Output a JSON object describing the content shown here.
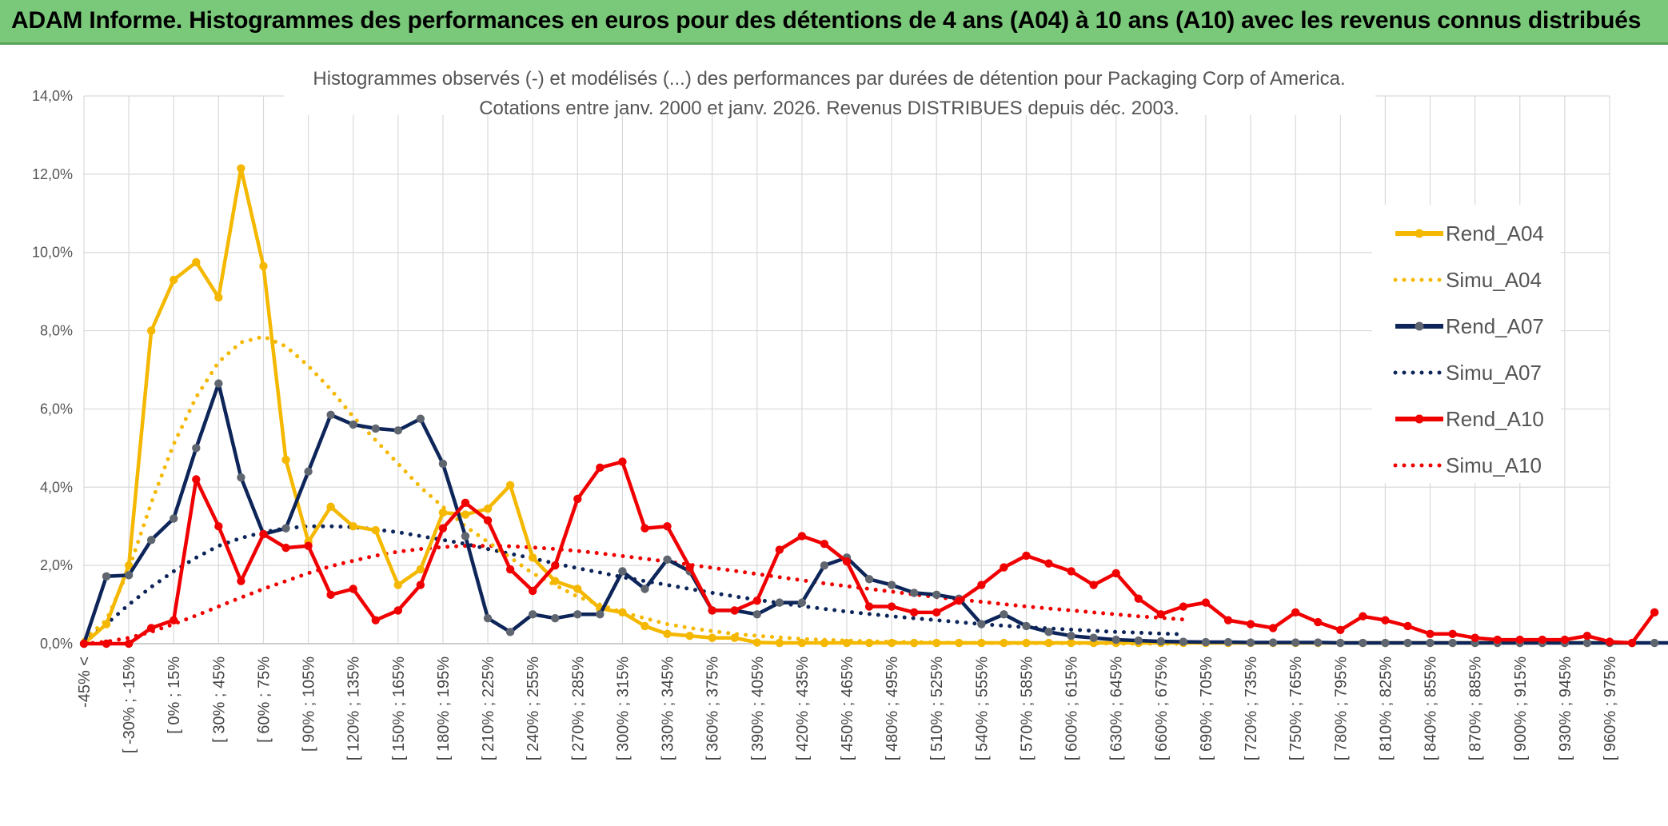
{
  "banner": {
    "title": "ADAM Informe. Histogrammes des performances en euros pour des détentions de 4 ans (A04) à 10 ans (A10) avec les revenus connus distribués"
  },
  "chart_data": {
    "type": "line",
    "title": "Histogrammes observés (-) et modélisés (...) des performances par durées de détention pour Packaging Corp of America.",
    "subtitle": "Cotations entre janv. 2000 et janv. 2026. Revenus DISTRIBUES depuis déc. 2003.",
    "ylim": [
      0,
      14
    ],
    "y_ticks": [
      "0,0%",
      "2,0%",
      "4,0%",
      "6,0%",
      "8,0%",
      "10,0%",
      "12,0%",
      "14,0%"
    ],
    "grid": true,
    "legend_position": "top-right",
    "x_ticks": [
      "-45% <",
      "[ -30% ; -15%",
      "[ 0% ; 15%",
      "[ 30% ; 45%",
      "[ 60% ; 75%",
      "[ 90% ; 105%",
      "[ 120% ; 135%",
      "[ 150% ; 165%",
      "[ 180% ; 195%",
      "[ 210% ; 225%",
      "[ 240% ; 255%",
      "[ 270% ; 285%",
      "[ 300% ; 315%",
      "[ 330% ; 345%",
      "[ 360% ; 375%",
      "[ 390% ; 405%",
      "[ 420% ; 435%",
      "[ 450% ; 465%",
      "[ 480% ; 495%",
      "[ 510% ; 525%",
      "[ 540% ; 555%",
      "[ 570% ; 585%",
      "[ 600% ; 615%",
      "[ 630% ; 645%",
      "[ 660% ; 675%",
      "[ 690% ; 705%",
      "[ 720% ; 735%",
      "[ 750% ; 765%",
      "[ 780% ; 795%",
      "[ 810% ; 825%",
      "[ 840% ; 855%",
      "[ 870% ; 885%",
      "[ 900% ; 915%",
      "[ 930% ; 945%",
      "[ 960% ; 975%"
    ],
    "series": [
      {
        "name": "Rend_A04",
        "color": "#f5b800",
        "style": "solid",
        "values": [
          0.0,
          0.5,
          2.0,
          8.0,
          9.3,
          9.75,
          8.85,
          12.15,
          9.65,
          4.7,
          2.6,
          3.5,
          3.0,
          2.9,
          1.5,
          1.9,
          3.35,
          3.3,
          3.45,
          4.05,
          2.2,
          1.6,
          1.4,
          0.9,
          0.8,
          0.45,
          0.25,
          0.2,
          0.15,
          0.15,
          0.03,
          0.02,
          0.02,
          0.02,
          0.02,
          0.02,
          0.02,
          0.02,
          0.02,
          0.02,
          0.02,
          0.02,
          0.02,
          0.02,
          0.02,
          0.02,
          0.02,
          0.02,
          0.02,
          0.02,
          0.02,
          0.02,
          0.02,
          0.02,
          0.02,
          0.02,
          0.02,
          0.02,
          0.02,
          0.02,
          0.02,
          0.02,
          0.02,
          0.02,
          0.02,
          0.02,
          0.02,
          0.02,
          0.02,
          0.02
        ]
      },
      {
        "name": "Simu_A04",
        "color": "#f5b800",
        "style": "dotted",
        "values": [
          0.1,
          0.6,
          1.9,
          3.6,
          5.1,
          6.3,
          7.2,
          7.7,
          7.85,
          7.6,
          7.1,
          6.5,
          5.8,
          5.2,
          4.6,
          4.0,
          3.5,
          3.0,
          2.6,
          2.2,
          1.8,
          1.5,
          1.2,
          1.0,
          0.8,
          0.65,
          0.5,
          0.4,
          0.32,
          0.25,
          0.2,
          0.16,
          0.12,
          0.1,
          0.08,
          0.06,
          0.05,
          0.04,
          0.03,
          0.02,
          0.02,
          0.01,
          0.01,
          0.01,
          0.01,
          0.01,
          0.0,
          0.0,
          0.0,
          0.0
        ]
      },
      {
        "name": "Rend_A07",
        "color": "#0d2559",
        "style": "solid",
        "values": [
          0.0,
          1.72,
          1.75,
          2.65,
          3.2,
          5.0,
          6.65,
          4.25,
          2.8,
          2.95,
          4.4,
          5.85,
          5.6,
          5.5,
          5.45,
          5.75,
          4.6,
          2.75,
          0.65,
          0.3,
          0.75,
          0.65,
          0.75,
          0.75,
          1.85,
          1.4,
          2.15,
          1.85,
          0.85,
          0.85,
          0.75,
          1.05,
          1.05,
          2.0,
          2.2,
          1.65,
          1.5,
          1.3,
          1.25,
          1.15,
          0.5,
          0.75,
          0.45,
          0.3,
          0.2,
          0.15,
          0.1,
          0.08,
          0.06,
          0.05,
          0.04,
          0.04,
          0.03,
          0.03,
          0.03,
          0.03,
          0.02,
          0.02,
          0.02,
          0.02,
          0.02,
          0.02,
          0.02,
          0.02,
          0.02,
          0.02,
          0.02,
          0.02,
          0.02,
          0.02,
          0.02,
          0.02
        ]
      },
      {
        "name": "Simu_A07",
        "color": "#0d2559",
        "style": "dotted",
        "values": [
          0.05,
          0.5,
          1.0,
          1.45,
          1.85,
          2.2,
          2.5,
          2.7,
          2.85,
          2.95,
          3.0,
          3.0,
          2.98,
          2.92,
          2.85,
          2.75,
          2.65,
          2.55,
          2.42,
          2.3,
          2.18,
          2.05,
          1.93,
          1.82,
          1.7,
          1.6,
          1.5,
          1.4,
          1.3,
          1.21,
          1.12,
          1.04,
          0.96,
          0.89,
          0.82,
          0.76,
          0.7,
          0.65,
          0.6,
          0.55,
          0.5,
          0.46,
          0.42,
          0.39,
          0.36,
          0.33,
          0.3,
          0.28,
          0.26,
          0.24
        ]
      },
      {
        "name": "Rend_A10",
        "color": "#f00000",
        "style": "solid",
        "values": [
          0.0,
          0.0,
          0.0,
          0.4,
          0.6,
          4.2,
          3.0,
          1.6,
          2.8,
          2.45,
          2.5,
          1.25,
          1.4,
          0.6,
          0.85,
          1.5,
          2.95,
          3.6,
          3.15,
          1.9,
          1.35,
          2.0,
          3.7,
          4.5,
          4.65,
          2.95,
          3.0,
          1.95,
          0.85,
          0.85,
          1.1,
          2.4,
          2.75,
          2.55,
          2.1,
          0.95,
          0.95,
          0.8,
          0.8,
          1.1,
          1.5,
          1.95,
          2.25,
          2.05,
          1.85,
          1.5,
          1.8,
          1.15,
          0.75,
          0.95,
          1.05,
          0.6,
          0.5,
          0.4,
          0.8,
          0.55,
          0.35,
          0.7,
          0.6,
          0.45,
          0.25,
          0.25,
          0.15,
          0.1,
          0.1,
          0.1,
          0.1,
          0.2,
          0.05,
          0.02,
          0.8
        ]
      },
      {
        "name": "Simu_A10",
        "color": "#f00000",
        "style": "dotted",
        "values": [
          0.0,
          0.05,
          0.15,
          0.3,
          0.5,
          0.72,
          0.95,
          1.18,
          1.4,
          1.6,
          1.8,
          1.98,
          2.12,
          2.25,
          2.35,
          2.42,
          2.47,
          2.5,
          2.5,
          2.49,
          2.46,
          2.42,
          2.37,
          2.31,
          2.24,
          2.17,
          2.1,
          2.02,
          1.94,
          1.86,
          1.78,
          1.7,
          1.62,
          1.54,
          1.47,
          1.4,
          1.33,
          1.26,
          1.19,
          1.13,
          1.07,
          1.01,
          0.95,
          0.9,
          0.85,
          0.8,
          0.75,
          0.7,
          0.66,
          0.62
        ]
      }
    ]
  }
}
